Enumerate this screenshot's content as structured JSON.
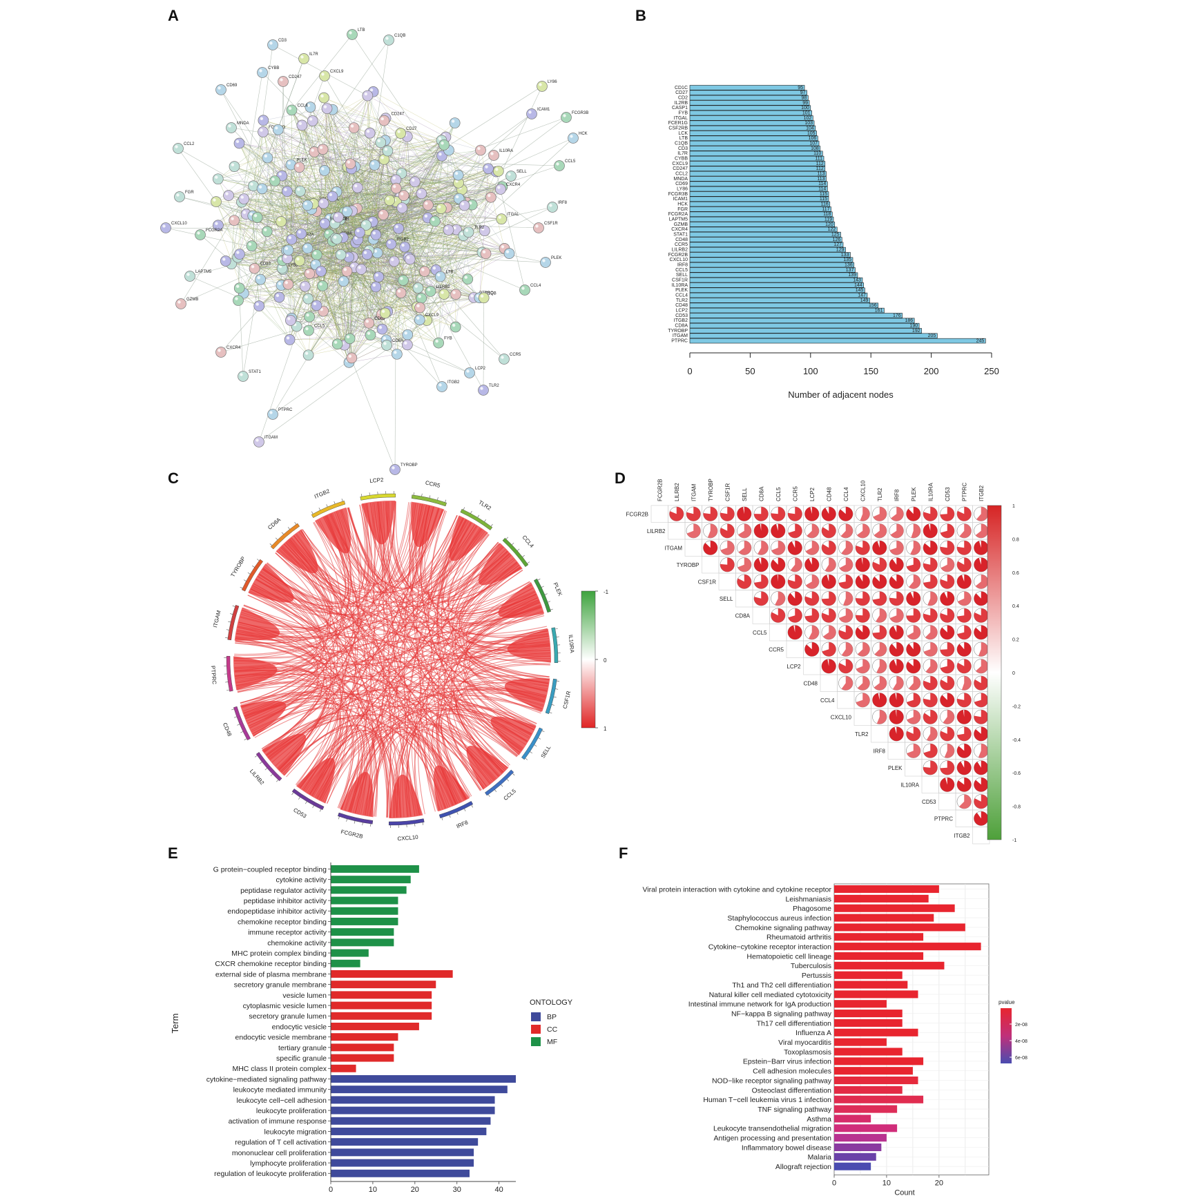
{
  "panel_labels": {
    "A": "A",
    "B": "B",
    "C": "C",
    "D": "D",
    "E": "E",
    "F": "F"
  },
  "chart_data": [
    {
      "panel": "A",
      "type": "network",
      "title": "",
      "node_labels": [
        "PTPRC",
        "ITGAM",
        "TYROBP",
        "CD8A",
        "ITGB2",
        "LCP2",
        "CCR5",
        "TLR2",
        "CCL4",
        "PLEK",
        "CSF1R",
        "IL10RA",
        "SELL",
        "CCL5",
        "IRF8",
        "CXCL10",
        "FCGR2B",
        "CD53",
        "LILRB2",
        "CD48",
        "CD1C",
        "CD27",
        "CD2",
        "IL2RB",
        "CASP1",
        "FYB",
        "ITGAL",
        "FCER1G",
        "CSF2RB",
        "LCK",
        "LTB",
        "C1QB",
        "CD3",
        "IL7R",
        "CYBB",
        "CXCL9",
        "CD247",
        "CCL2",
        "MNDA",
        "CD69",
        "LY86",
        "FCGR3B",
        "ICAM1",
        "HCK",
        "FGR",
        "FCGR2A",
        "LAPTM5",
        "GZMB",
        "CXCR4",
        "STAT1"
      ]
    },
    {
      "panel": "B",
      "type": "bar",
      "orientation": "horizontal",
      "categories": [
        "PTPRC",
        "ITGAM",
        "TYROBP",
        "CD8A",
        "ITGB2",
        "CD53",
        "LCP2",
        "CD48",
        "TLR2",
        "CCL4",
        "PLEK",
        "IL10RA",
        "CSF1R",
        "SELL",
        "CCL5",
        "IRF8",
        "CXCL10",
        "FCGR2B",
        "LILRB2",
        "CCR5",
        "CD48",
        "STAT1",
        "CXCR4",
        "GZMB",
        "LAPTM5",
        "FCGR2A",
        "FGR",
        "HCK",
        "ICAM1",
        "FCGR3B",
        "LY86",
        "CD69",
        "MNDA",
        "CCL2",
        "CD247",
        "CXCL9",
        "CYBB",
        "IL7R",
        "CD3",
        "C1QB",
        "LTB",
        "LCK",
        "CSF2RB",
        "FCER1G",
        "ITGAL",
        "FYB",
        "CASP1",
        "IL2RB",
        "CD2",
        "CD27",
        "CD1C"
      ],
      "values": [
        245,
        205,
        192,
        190,
        186,
        176,
        161,
        156,
        149,
        147,
        145,
        144,
        143,
        139,
        137,
        136,
        135,
        133,
        129,
        127,
        126,
        125,
        122,
        120,
        119,
        118,
        117,
        116,
        115,
        115,
        114,
        114,
        113,
        113,
        112,
        112,
        111,
        110,
        108,
        107,
        106,
        105,
        104,
        103,
        102,
        101,
        100,
        99,
        98,
        97,
        95
      ],
      "value_labels": [
        "245",
        "205",
        "192",
        "190",
        "186",
        "176",
        "161",
        "156",
        "149",
        "147",
        "145",
        "144",
        "143",
        "139",
        "137",
        "136",
        "135",
        "133",
        "129",
        "127",
        "126",
        "125",
        "122",
        "120",
        "119",
        "118",
        "117",
        "116",
        "115",
        "115",
        "114",
        "114",
        "113",
        "113",
        "112",
        "112",
        "111",
        "110",
        "108",
        "107",
        "106",
        "105",
        "104",
        "103",
        "102",
        "101",
        "100",
        "99",
        "98",
        "97",
        "95"
      ],
      "xlim": [
        0,
        250
      ],
      "xticks": [
        "0",
        "50",
        "100",
        "150",
        "200",
        "250"
      ],
      "xlabel": "Number of adjacent nodes",
      "bar_color": "#7ec8e3"
    },
    {
      "panel": "C",
      "type": "chord",
      "genes": [
        "CCR5",
        "TLR2",
        "CCL4",
        "PLEK",
        "IL10RA",
        "CSF1R",
        "SELL",
        "CCL5",
        "IRF8",
        "CXCL10",
        "FCGR2B",
        "CD53",
        "LILRB2",
        "CD48",
        "PTPRC",
        "ITGAM",
        "TYROBP",
        "CD8A",
        "ITGB2",
        "LCP2"
      ],
      "colorbar_ticks": [
        "-1",
        "0",
        "1"
      ]
    },
    {
      "panel": "D",
      "type": "heatmap",
      "genes": [
        "FCGR2B",
        "LILRB2",
        "ITGAM",
        "TYROBP",
        "CSF1R",
        "SELL",
        "CD8A",
        "CCL5",
        "CCR5",
        "LCP2",
        "CD48",
        "CCL4",
        "CXCL10",
        "TLR2",
        "IRF8",
        "PLEK",
        "IL10RA",
        "CD53",
        "PTPRC",
        "ITGB2"
      ],
      "colorbar_ticks": [
        "1",
        "0.8",
        "0.6",
        "0.4",
        "0.2",
        "0",
        "-0.2",
        "-0.4",
        "-0.6",
        "-0.8",
        "-1"
      ]
    },
    {
      "panel": "E",
      "type": "bar",
      "orientation": "horizontal",
      "ylabel": "Term",
      "xlabel": "Count",
      "xticks": [
        "0",
        "10",
        "20",
        "30",
        "40"
      ],
      "xlim": [
        0,
        44
      ],
      "legend": {
        "title": "ONTOLOGY",
        "items": [
          {
            "name": "BP",
            "color": "#3f4a9b"
          },
          {
            "name": "CC",
            "color": "#e02a2a"
          },
          {
            "name": "MF",
            "color": "#1e9148"
          }
        ]
      },
      "terms": [
        "G protein−coupled receptor binding",
        "cytokine activity",
        "peptidase regulator activity",
        "peptidase inhibitor activity",
        "endopeptidase inhibitor activity",
        "chemokine receptor binding",
        "immune receptor activity",
        "chemokine activity",
        "MHC protein complex binding",
        "CXCR chemokine receptor binding",
        "external side of plasma membrane",
        "secretory granule membrane",
        "vesicle lumen",
        "cytoplasmic vesicle lumen",
        "secretory granule lumen",
        "endocytic vesicle",
        "endocytic vesicle membrane",
        "tertiary granule",
        "specific granule",
        "MHC class II protein complex",
        "cytokine−mediated signaling pathway",
        "leukocyte mediated immunity",
        "leukocyte cell−cell adhesion",
        "leukocyte proliferation",
        "activation of immune response",
        "leukocyte migration",
        "regulation of T cell activation",
        "mononuclear cell proliferation",
        "lymphocyte proliferation",
        "regulation of leukocyte proliferation"
      ],
      "counts": [
        21,
        19,
        18,
        16,
        16,
        16,
        15,
        15,
        9,
        7,
        29,
        25,
        24,
        24,
        24,
        21,
        16,
        15,
        15,
        6,
        44,
        42,
        39,
        39,
        38,
        37,
        35,
        34,
        34,
        33
      ],
      "ontology": [
        "MF",
        "MF",
        "MF",
        "MF",
        "MF",
        "MF",
        "MF",
        "MF",
        "MF",
        "MF",
        "CC",
        "CC",
        "CC",
        "CC",
        "CC",
        "CC",
        "CC",
        "CC",
        "CC",
        "CC",
        "BP",
        "BP",
        "BP",
        "BP",
        "BP",
        "BP",
        "BP",
        "BP",
        "BP",
        "BP"
      ]
    },
    {
      "panel": "F",
      "type": "bar",
      "orientation": "horizontal",
      "xlabel": "Count",
      "xticks": [
        "0",
        "10",
        "20"
      ],
      "xlim": [
        0,
        29.5
      ],
      "legend": {
        "title": "pvalue",
        "ticks": [
          "2e-08",
          "4e-08",
          "6e-08"
        ]
      },
      "terms": [
        "Viral protein interaction with cytokine and cytokine receptor",
        "Leishmaniasis",
        "Phagosome",
        "Staphylococcus aureus infection",
        "Chemokine signaling pathway",
        "Rheumatoid arthritis",
        "Cytokine−cytokine receptor interaction",
        "Hematopoietic cell lineage",
        "Tuberculosis",
        "Pertussis",
        "Th1 and Th2 cell differentiation",
        "Natural killer cell mediated cytotoxicity",
        "Intestinal immune network for IgA production",
        "NF−kappa B signaling pathway",
        "Th17 cell differentiation",
        "Influenza A",
        "Viral myocarditis",
        "Toxoplasmosis",
        "Epstein−Barr virus infection",
        "Cell adhesion molecules",
        "NOD−like receptor signaling pathway",
        "Osteoclast differentiation",
        "Human T−cell leukemia virus 1 infection",
        "TNF signaling pathway",
        "Asthma",
        "Leukocyte transendothelial migration",
        "Antigen processing and presentation",
        "Inflammatory bowel disease",
        "Malaria",
        "Allograft rejection"
      ],
      "counts": [
        20,
        18,
        23,
        19,
        25,
        17,
        28,
        17,
        21,
        13,
        14,
        16,
        10,
        13,
        13,
        16,
        10,
        13,
        17,
        15,
        16,
        13,
        17,
        12,
        7,
        12,
        10,
        9,
        8,
        7
      ],
      "pvalue_colors": [
        "#e8252f",
        "#e8252f",
        "#e8252f",
        "#e8252f",
        "#e8252f",
        "#e8252f",
        "#e8252f",
        "#e8252f",
        "#e8252f",
        "#e8252f",
        "#e8252f",
        "#e8252f",
        "#e8252f",
        "#e8252f",
        "#e8252f",
        "#e8252f",
        "#e8252f",
        "#e8252f",
        "#e8252f",
        "#e8252f",
        "#e52a3c",
        "#e32b45",
        "#e02c4f",
        "#dd2d58",
        "#d62c6a",
        "#d02d7a",
        "#b83290",
        "#8a3aa0",
        "#6a42a8",
        "#4a4cb0"
      ]
    }
  ]
}
